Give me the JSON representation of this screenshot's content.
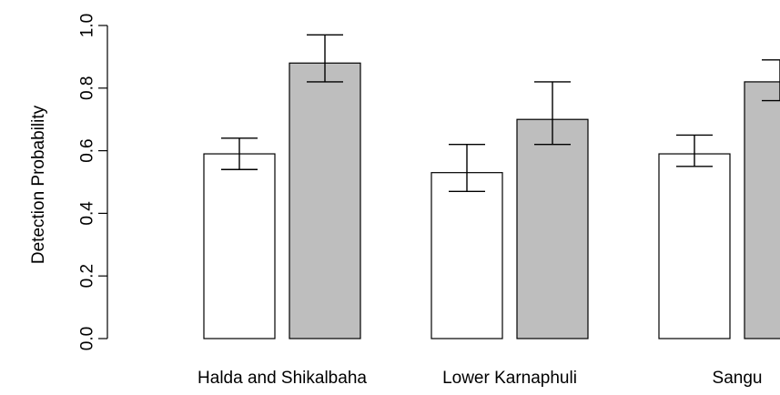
{
  "chart_data": {
    "type": "bar",
    "ylabel": "Detection Probability",
    "xlabel": "",
    "ylim": [
      0,
      1
    ],
    "yticks": [
      "0.0",
      "0.2",
      "0.4",
      "0.6",
      "0.8",
      "1.0"
    ],
    "categories": [
      "Halda and Shikalbaha",
      "Lower Karnaphuli",
      "Sangu"
    ],
    "series": [
      {
        "color": "#ffffff",
        "values": [
          0.59,
          0.53,
          0.59
        ],
        "lower": [
          0.54,
          0.47,
          0.55
        ],
        "upper": [
          0.64,
          0.62,
          0.65
        ]
      },
      {
        "color": "#bebebe",
        "values": [
          0.88,
          0.7,
          0.82
        ],
        "lower": [
          0.82,
          0.62,
          0.76
        ],
        "upper": [
          0.97,
          0.82,
          0.89
        ]
      }
    ],
    "grid": false,
    "legend": "none"
  }
}
